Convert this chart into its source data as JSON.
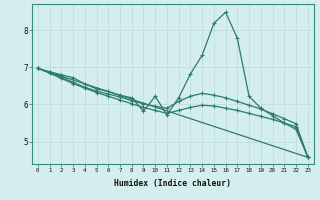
{
  "xlabel": "Humidex (Indice chaleur)",
  "xlim": [
    -0.5,
    23.5
  ],
  "ylim": [
    4.4,
    8.7
  ],
  "xticks": [
    0,
    1,
    2,
    3,
    4,
    5,
    6,
    7,
    8,
    9,
    10,
    11,
    12,
    13,
    14,
    15,
    16,
    17,
    18,
    19,
    20,
    21,
    22,
    23
  ],
  "yticks": [
    5,
    6,
    7,
    8
  ],
  "bg_color": "#d4eeee",
  "line_color": "#2d7a6e",
  "grid_color": "#c0dede",
  "series1_x": [
    0,
    1,
    2,
    3,
    4,
    5,
    6,
    7,
    8,
    9,
    10,
    11,
    12,
    13,
    14,
    15,
    16,
    17,
    18,
    19,
    20,
    21,
    22,
    23
  ],
  "series1_y": [
    6.97,
    6.88,
    6.8,
    6.72,
    6.55,
    6.42,
    6.35,
    6.25,
    6.18,
    5.82,
    6.22,
    5.72,
    6.18,
    6.82,
    7.32,
    8.18,
    8.48,
    7.78,
    6.22,
    5.9,
    5.7,
    5.5,
    5.33,
    4.6
  ],
  "series2_x": [
    0,
    1,
    2,
    3,
    4,
    5,
    6,
    7,
    8,
    9,
    10,
    11,
    12,
    13,
    14,
    15,
    16,
    17,
    18,
    19,
    20,
    21,
    22,
    23
  ],
  "series2_y": [
    6.97,
    6.86,
    6.73,
    6.6,
    6.46,
    6.36,
    6.28,
    6.2,
    6.1,
    6.02,
    5.95,
    5.9,
    6.08,
    6.22,
    6.3,
    6.25,
    6.18,
    6.08,
    5.98,
    5.88,
    5.75,
    5.62,
    5.48,
    4.6
  ],
  "series3_x": [
    0,
    1,
    2,
    3,
    4,
    5,
    6,
    7,
    8,
    9,
    10,
    11,
    12,
    13,
    14,
    15,
    16,
    17,
    18,
    19,
    20,
    21,
    22,
    23
  ],
  "series3_y": [
    6.97,
    6.84,
    6.7,
    6.56,
    6.44,
    6.32,
    6.22,
    6.12,
    6.02,
    5.92,
    5.84,
    5.76,
    5.84,
    5.92,
    5.98,
    5.96,
    5.9,
    5.84,
    5.76,
    5.68,
    5.6,
    5.5,
    5.4,
    4.58
  ],
  "series4_x": [
    0,
    23
  ],
  "series4_y": [
    6.97,
    4.58
  ]
}
